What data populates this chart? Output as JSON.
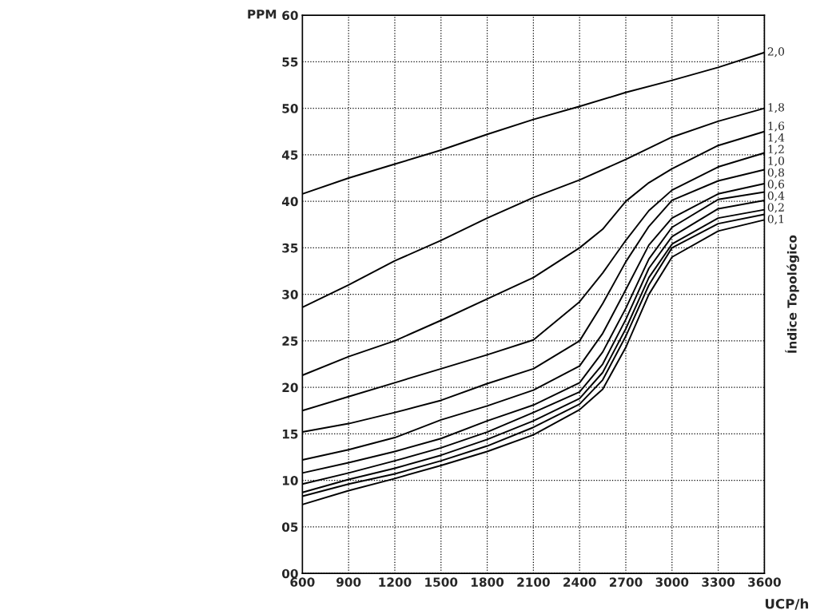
{
  "chart_data": {
    "type": "line",
    "xlabel": "UCP/h",
    "ylabel": "PPM",
    "legend_title": "Índice Topológico",
    "x": [
      600,
      900,
      1200,
      1500,
      1800,
      2100,
      2400,
      2550,
      2700,
      2850,
      3000,
      3300,
      3600
    ],
    "series": [
      {
        "name": "2,0",
        "color": "#000000",
        "values": [
          40.8,
          42.5,
          44.0,
          45.5,
          47.2,
          48.8,
          50.2,
          null,
          51.7,
          null,
          53.0,
          54.4,
          56.0
        ]
      },
      {
        "name": "1,8",
        "color": "#000000",
        "values": [
          28.6,
          31.0,
          33.6,
          35.8,
          38.2,
          40.4,
          42.3,
          null,
          44.5,
          null,
          46.9,
          48.6,
          50.0
        ]
      },
      {
        "name": "1,6",
        "color": "#000000",
        "values": [
          21.3,
          23.3,
          25.0,
          27.2,
          29.5,
          31.8,
          35.0,
          37.0,
          40.0,
          42.0,
          43.5,
          46.0,
          47.5
        ]
      },
      {
        "name": "1,4",
        "color": "#000000",
        "values": [
          17.5,
          19.0,
          20.5,
          22.0,
          23.5,
          25.1,
          29.2,
          32.3,
          35.8,
          39.0,
          41.2,
          43.7,
          45.2
        ]
      },
      {
        "name": "1,2",
        "color": "#000000",
        "values": [
          15.2,
          16.1,
          17.3,
          18.6,
          20.4,
          22.0,
          25.0,
          29.0,
          33.5,
          37.3,
          40.1,
          42.2,
          43.4
        ]
      },
      {
        "name": "1,0",
        "color": "#000000",
        "values": [
          12.2,
          13.3,
          14.6,
          16.5,
          18.0,
          19.7,
          22.3,
          25.8,
          30.5,
          35.3,
          38.2,
          40.8,
          41.9
        ]
      },
      {
        "name": "0,8",
        "color": "#000000",
        "values": [
          10.8,
          11.9,
          13.1,
          14.5,
          16.4,
          18.1,
          20.5,
          23.8,
          28.5,
          33.8,
          37.2,
          40.2,
          41.0
        ]
      },
      {
        "name": "0,6",
        "color": "#000000",
        "values": [
          9.6,
          10.8,
          12.1,
          13.5,
          15.2,
          17.3,
          19.5,
          22.5,
          27.3,
          32.8,
          36.2,
          39.2,
          40.1
        ]
      },
      {
        "name": "0,4",
        "color": "#000000",
        "values": [
          8.7,
          10.1,
          11.3,
          12.7,
          14.4,
          16.4,
          18.8,
          21.6,
          26.3,
          31.8,
          35.4,
          38.2,
          39.1
        ]
      },
      {
        "name": "0,2",
        "color": "#000000",
        "values": [
          8.3,
          9.6,
          10.7,
          12.1,
          13.7,
          15.7,
          18.2,
          20.8,
          25.5,
          31.0,
          35.0,
          37.6,
          38.6
        ]
      },
      {
        "name": "0,1",
        "color": "#000000",
        "values": [
          7.4,
          8.9,
          10.2,
          11.6,
          13.1,
          14.9,
          17.6,
          19.8,
          24.3,
          30.0,
          34.0,
          36.8,
          38.0
        ]
      }
    ],
    "xlim": [
      600,
      3600
    ],
    "xticks": [
      600,
      900,
      1200,
      1500,
      1800,
      2100,
      2400,
      2700,
      3000,
      3300,
      3600
    ],
    "ylim": [
      0,
      60
    ],
    "yticks": [
      {
        "value": 0,
        "label": "00"
      },
      {
        "value": 5,
        "label": "05"
      },
      10,
      15,
      20,
      25,
      30,
      35,
      40,
      45,
      50,
      55,
      60
    ],
    "grid": true,
    "legend": false,
    "marker": "none",
    "line_style": "solid"
  }
}
